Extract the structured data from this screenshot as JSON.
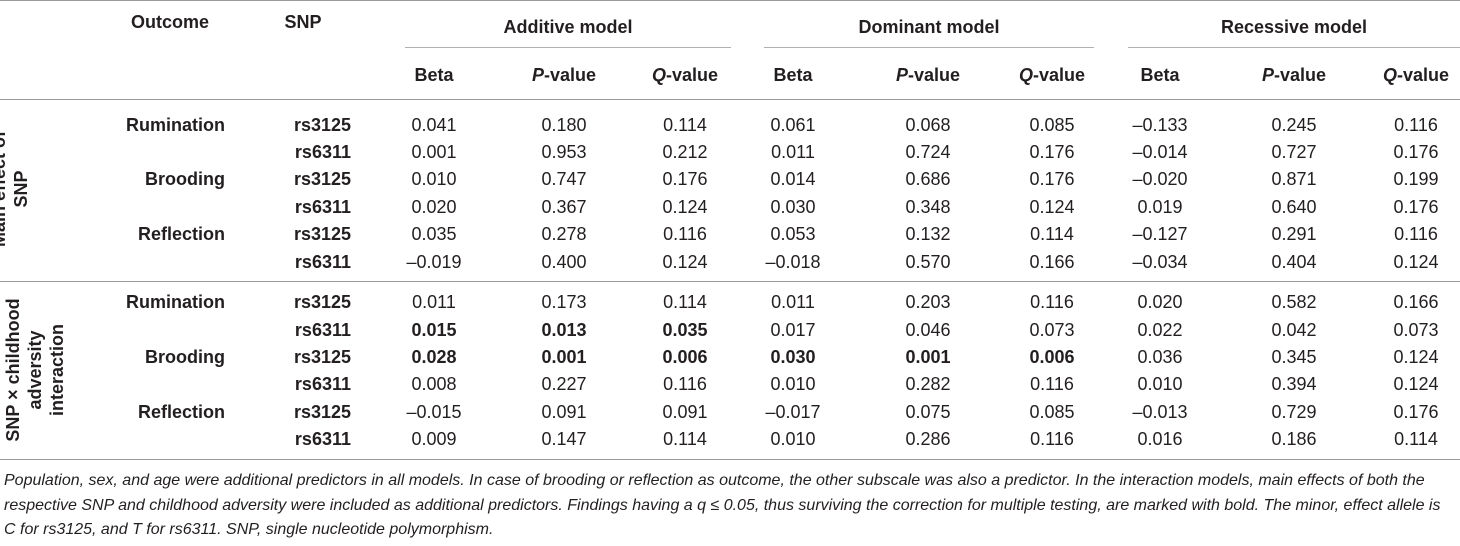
{
  "header": {
    "outcome": "Outcome",
    "snp": "SNP",
    "groups": [
      "Additive model",
      "Dominant model",
      "Recessive model"
    ],
    "beta": "Beta",
    "p_letter": "P",
    "q_letter": "Q",
    "value_suffix": "-value"
  },
  "sections": [
    {
      "label_lines": [
        "Main effect of",
        "SNP"
      ],
      "rows": [
        {
          "outcome": "Rumination",
          "snp": "rs3125",
          "cells": [
            "0.041",
            "0.180",
            "0.114",
            "0.061",
            "0.068",
            "0.085",
            "–0.133",
            "0.245",
            "0.116"
          ],
          "bold": [
            false,
            false,
            false,
            false,
            false,
            false,
            false,
            false,
            false
          ]
        },
        {
          "outcome": "",
          "snp": "rs6311",
          "cells": [
            "0.001",
            "0.953",
            "0.212",
            "0.011",
            "0.724",
            "0.176",
            "–0.014",
            "0.727",
            "0.176"
          ],
          "bold": [
            false,
            false,
            false,
            false,
            false,
            false,
            false,
            false,
            false
          ]
        },
        {
          "outcome": "Brooding",
          "snp": "rs3125",
          "cells": [
            "0.010",
            "0.747",
            "0.176",
            "0.014",
            "0.686",
            "0.176",
            "–0.020",
            "0.871",
            "0.199"
          ],
          "bold": [
            false,
            false,
            false,
            false,
            false,
            false,
            false,
            false,
            false
          ]
        },
        {
          "outcome": "",
          "snp": "rs6311",
          "cells": [
            "0.020",
            "0.367",
            "0.124",
            "0.030",
            "0.348",
            "0.124",
            "0.019",
            "0.640",
            "0.176"
          ],
          "bold": [
            false,
            false,
            false,
            false,
            false,
            false,
            false,
            false,
            false
          ]
        },
        {
          "outcome": "Reflection",
          "snp": "rs3125",
          "cells": [
            "0.035",
            "0.278",
            "0.116",
            "0.053",
            "0.132",
            "0.114",
            "–0.127",
            "0.291",
            "0.116"
          ],
          "bold": [
            false,
            false,
            false,
            false,
            false,
            false,
            false,
            false,
            false
          ]
        },
        {
          "outcome": "",
          "snp": "rs6311",
          "cells": [
            "–0.019",
            "0.400",
            "0.124",
            "–0.018",
            "0.570",
            "0.166",
            "–0.034",
            "0.404",
            "0.124"
          ],
          "bold": [
            false,
            false,
            false,
            false,
            false,
            false,
            false,
            false,
            false
          ]
        }
      ]
    },
    {
      "label_lines": [
        "SNP × childhood",
        "adversity",
        "interaction"
      ],
      "rows": [
        {
          "outcome": "Rumination",
          "snp": "rs3125",
          "cells": [
            "0.011",
            "0.173",
            "0.114",
            "0.011",
            "0.203",
            "0.116",
            "0.020",
            "0.582",
            "0.166"
          ],
          "bold": [
            false,
            false,
            false,
            false,
            false,
            false,
            false,
            false,
            false
          ]
        },
        {
          "outcome": "",
          "snp": "rs6311",
          "cells": [
            "0.015",
            "0.013",
            "0.035",
            "0.017",
            "0.046",
            "0.073",
            "0.022",
            "0.042",
            "0.073"
          ],
          "bold": [
            true,
            true,
            true,
            false,
            false,
            false,
            false,
            false,
            false
          ]
        },
        {
          "outcome": "Brooding",
          "snp": "rs3125",
          "cells": [
            "0.028",
            "0.001",
            "0.006",
            "0.030",
            "0.001",
            "0.006",
            "0.036",
            "0.345",
            "0.124"
          ],
          "bold": [
            true,
            true,
            true,
            true,
            true,
            true,
            false,
            false,
            false
          ]
        },
        {
          "outcome": "",
          "snp": "rs6311",
          "cells": [
            "0.008",
            "0.227",
            "0.116",
            "0.010",
            "0.282",
            "0.116",
            "0.010",
            "0.394",
            "0.124"
          ],
          "bold": [
            false,
            false,
            false,
            false,
            false,
            false,
            false,
            false,
            false
          ]
        },
        {
          "outcome": "Reflection",
          "snp": "rs3125",
          "cells": [
            "–0.015",
            "0.091",
            "0.091",
            "–0.017",
            "0.075",
            "0.085",
            "–0.013",
            "0.729",
            "0.176"
          ],
          "bold": [
            false,
            false,
            false,
            false,
            false,
            false,
            false,
            false,
            false
          ]
        },
        {
          "outcome": "",
          "snp": "rs6311",
          "cells": [
            "0.009",
            "0.147",
            "0.114",
            "0.010",
            "0.286",
            "0.116",
            "0.016",
            "0.186",
            "0.114"
          ],
          "bold": [
            false,
            false,
            false,
            false,
            false,
            false,
            false,
            false,
            false
          ]
        }
      ]
    }
  ],
  "footnote": "Population, sex, and age were additional predictors in all models. In case of brooding or reflection as outcome, the other subscale was also a predictor. In the interaction models, main effects of both the respective SNP and childhood adversity were included as additional predictors. Findings having a q ≤ 0.05, thus surviving the correction for multiple testing, are marked with bold. The minor, effect allele is C for rs3125, and T for rs6311. SNP, single nucleotide polymorphism."
}
